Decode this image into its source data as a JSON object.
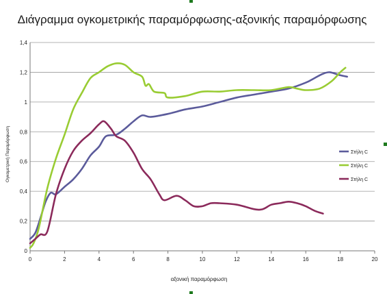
{
  "chart_data": {
    "type": "line",
    "title": "Διάγραμμα ογκομετρικής παραμόρφωσης-αξονικής παραμόρφωσης",
    "xlabel": "αξονική παραμόρφωση",
    "ylabel": "Ογκομετρική Παραμόρφωση",
    "xlim": [
      0,
      20
    ],
    "ylim": [
      0,
      1.4
    ],
    "x_ticks": [
      "0",
      "2",
      "4",
      "6",
      "8",
      "10",
      "12",
      "14",
      "16",
      "18",
      "20"
    ],
    "y_ticks": [
      "0",
      "0,2",
      "0,4",
      "0,6",
      "0,8",
      "1",
      "1,2",
      "1,4"
    ],
    "grid": true,
    "legend_position": "right",
    "series": [
      {
        "name": "Στήλη C",
        "color": "#5b5b9b",
        "points": [
          [
            0,
            0.08
          ],
          [
            0.3,
            0.12
          ],
          [
            0.6,
            0.22
          ],
          [
            0.9,
            0.33
          ],
          [
            1.2,
            0.39
          ],
          [
            1.5,
            0.38
          ],
          [
            2,
            0.43
          ],
          [
            2.5,
            0.48
          ],
          [
            3,
            0.55
          ],
          [
            3.5,
            0.64
          ],
          [
            4,
            0.7
          ],
          [
            4.4,
            0.77
          ],
          [
            5,
            0.78
          ],
          [
            5.5,
            0.82
          ],
          [
            6,
            0.87
          ],
          [
            6.5,
            0.91
          ],
          [
            7,
            0.9
          ],
          [
            8,
            0.92
          ],
          [
            9,
            0.95
          ],
          [
            10,
            0.97
          ],
          [
            11,
            1.0
          ],
          [
            12,
            1.03
          ],
          [
            13,
            1.05
          ],
          [
            14,
            1.07
          ],
          [
            15,
            1.09
          ],
          [
            16,
            1.13
          ],
          [
            16.5,
            1.16
          ],
          [
            17,
            1.19
          ],
          [
            17.4,
            1.2
          ],
          [
            18,
            1.18
          ],
          [
            18.4,
            1.17
          ]
        ]
      },
      {
        "name": "Στήλη C",
        "color": "#99cc33",
        "points": [
          [
            0,
            0.02
          ],
          [
            0.2,
            0.05
          ],
          [
            0.5,
            0.15
          ],
          [
            1,
            0.42
          ],
          [
            1.5,
            0.62
          ],
          [
            2,
            0.78
          ],
          [
            2.5,
            0.95
          ],
          [
            3,
            1.06
          ],
          [
            3.5,
            1.16
          ],
          [
            4,
            1.2
          ],
          [
            4.5,
            1.24
          ],
          [
            5,
            1.26
          ],
          [
            5.5,
            1.25
          ],
          [
            6,
            1.2
          ],
          [
            6.5,
            1.17
          ],
          [
            6.7,
            1.11
          ],
          [
            6.9,
            1.12
          ],
          [
            7.2,
            1.07
          ],
          [
            7.8,
            1.06
          ],
          [
            8,
            1.03
          ],
          [
            9,
            1.04
          ],
          [
            10,
            1.07
          ],
          [
            11,
            1.07
          ],
          [
            12,
            1.08
          ],
          [
            13,
            1.08
          ],
          [
            14,
            1.08
          ],
          [
            15,
            1.1
          ],
          [
            15.5,
            1.09
          ],
          [
            16,
            1.08
          ],
          [
            16.8,
            1.09
          ],
          [
            17.5,
            1.14
          ],
          [
            18,
            1.2
          ],
          [
            18.3,
            1.23
          ]
        ]
      },
      {
        "name": "Στήλη C",
        "color": "#8b2a5b",
        "points": [
          [
            0,
            0.05
          ],
          [
            0.3,
            0.08
          ],
          [
            0.6,
            0.11
          ],
          [
            1,
            0.13
          ],
          [
            1.5,
            0.38
          ],
          [
            2,
            0.55
          ],
          [
            2.5,
            0.67
          ],
          [
            3,
            0.74
          ],
          [
            3.5,
            0.79
          ],
          [
            4,
            0.85
          ],
          [
            4.3,
            0.87
          ],
          [
            4.7,
            0.82
          ],
          [
            5,
            0.77
          ],
          [
            5.5,
            0.74
          ],
          [
            6,
            0.66
          ],
          [
            6.5,
            0.55
          ],
          [
            7,
            0.48
          ],
          [
            7.5,
            0.38
          ],
          [
            7.8,
            0.34
          ],
          [
            8.5,
            0.37
          ],
          [
            9,
            0.34
          ],
          [
            9.5,
            0.3
          ],
          [
            10,
            0.3
          ],
          [
            10.5,
            0.32
          ],
          [
            11,
            0.32
          ],
          [
            12,
            0.31
          ],
          [
            13,
            0.28
          ],
          [
            13.5,
            0.28
          ],
          [
            14,
            0.31
          ],
          [
            14.5,
            0.32
          ],
          [
            15,
            0.33
          ],
          [
            15.5,
            0.32
          ],
          [
            16,
            0.3
          ],
          [
            16.5,
            0.27
          ],
          [
            17,
            0.25
          ]
        ]
      }
    ]
  }
}
